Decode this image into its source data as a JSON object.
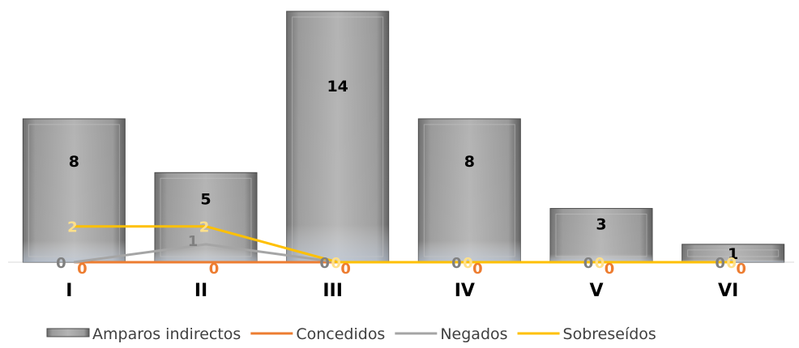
{
  "chart_data": {
    "type": "bar",
    "categories": [
      "I",
      "II",
      "III",
      "IV",
      "V",
      "VI"
    ],
    "series": [
      {
        "name": "Amparos indirectos",
        "kind": "bar",
        "values": [
          8,
          5,
          14,
          8,
          3,
          1
        ],
        "color": "#8a8a8a"
      },
      {
        "name": "Concedidos",
        "kind": "line",
        "values": [
          0,
          0,
          0,
          0,
          0,
          0
        ],
        "color": "#ED7D31"
      },
      {
        "name": "Negados",
        "kind": "line",
        "values": [
          0,
          1,
          0,
          0,
          0,
          0
        ],
        "color": "#A5A5A5"
      },
      {
        "name": "Sobreseídos",
        "kind": "line",
        "values": [
          2,
          2,
          0,
          0,
          0,
          0
        ],
        "color": "#FFC000"
      }
    ],
    "ylim": [
      0,
      14
    ],
    "grid": false,
    "legend": "bottom",
    "title": "",
    "xlabel": "",
    "ylabel": ""
  }
}
